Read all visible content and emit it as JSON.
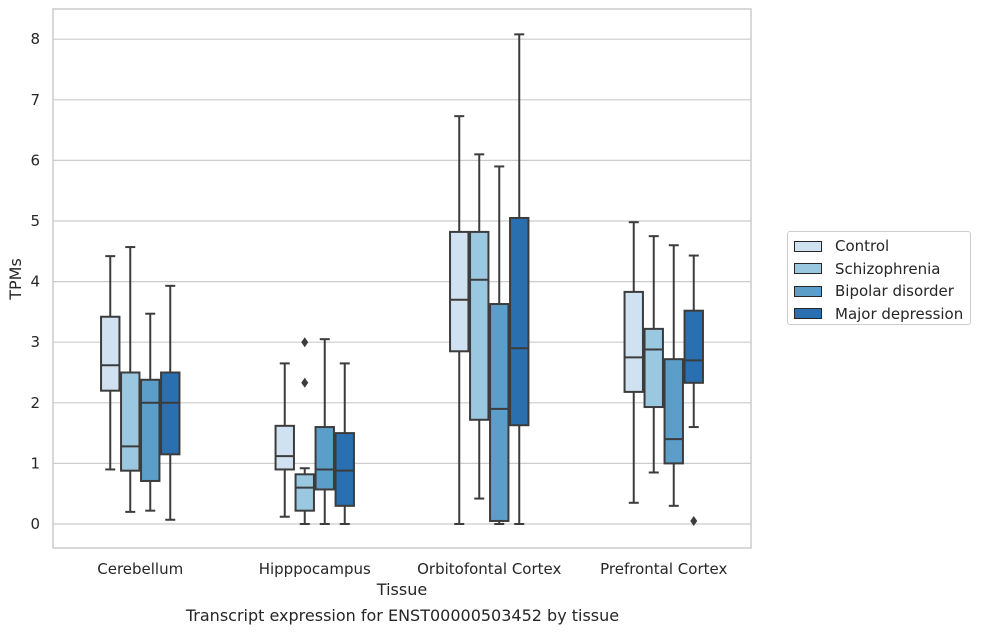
{
  "chart_data": {
    "type": "box",
    "caption": "Transcript expression for ENST00000503452 by tissue",
    "xlabel": "Tissue",
    "ylabel": "TPMs",
    "ylim": [
      -0.4,
      8.5
    ],
    "yticks": [
      0,
      1,
      2,
      3,
      4,
      5,
      6,
      7,
      8
    ],
    "grid": true,
    "legend_position": "right",
    "categories": [
      "Cerebellum",
      "Hipppocampus",
      "Orbitofontal Cortex",
      "Prefrontal Cortex"
    ],
    "series": [
      {
        "name": "Control",
        "color": "#d0e1f2",
        "boxes": [
          {
            "whisker_low": 0.9,
            "q1": 2.2,
            "median": 2.62,
            "q3": 3.42,
            "whisker_high": 4.42,
            "outliers": []
          },
          {
            "whisker_low": 0.12,
            "q1": 0.9,
            "median": 1.12,
            "q3": 1.62,
            "whisker_high": 2.65,
            "outliers": []
          },
          {
            "whisker_low": 0.0,
            "q1": 2.85,
            "median": 3.7,
            "q3": 4.82,
            "whisker_high": 6.73,
            "outliers": []
          },
          {
            "whisker_low": 0.35,
            "q1": 2.18,
            "median": 2.75,
            "q3": 3.83,
            "whisker_high": 4.98,
            "outliers": []
          }
        ]
      },
      {
        "name": "Schizophrenia",
        "color": "#9ac8e0",
        "boxes": [
          {
            "whisker_low": 0.2,
            "q1": 0.88,
            "median": 1.28,
            "q3": 2.5,
            "whisker_high": 4.57,
            "outliers": []
          },
          {
            "whisker_low": 0.0,
            "q1": 0.22,
            "median": 0.6,
            "q3": 0.82,
            "whisker_high": 0.92,
            "outliers": [
              2.33,
              3.0
            ]
          },
          {
            "whisker_low": 0.42,
            "q1": 1.72,
            "median": 4.03,
            "q3": 4.82,
            "whisker_high": 6.1,
            "outliers": []
          },
          {
            "whisker_low": 0.85,
            "q1": 1.93,
            "median": 2.88,
            "q3": 3.22,
            "whisker_high": 4.75,
            "outliers": []
          }
        ]
      },
      {
        "name": "Bipolar disorder",
        "color": "#5a9ec9",
        "boxes": [
          {
            "whisker_low": 0.22,
            "q1": 0.71,
            "median": 2.0,
            "q3": 2.38,
            "whisker_high": 3.47,
            "outliers": []
          },
          {
            "whisker_low": 0.0,
            "q1": 0.57,
            "median": 0.9,
            "q3": 1.6,
            "whisker_high": 3.05,
            "outliers": []
          },
          {
            "whisker_low": 0.0,
            "q1": 0.05,
            "median": 1.9,
            "q3": 3.63,
            "whisker_high": 5.9,
            "outliers": []
          },
          {
            "whisker_low": 0.3,
            "q1": 1.0,
            "median": 1.4,
            "q3": 2.72,
            "whisker_high": 4.6,
            "outliers": []
          }
        ]
      },
      {
        "name": "Major depression",
        "color": "#2a6fb0",
        "boxes": [
          {
            "whisker_low": 0.07,
            "q1": 1.15,
            "median": 2.0,
            "q3": 2.5,
            "whisker_high": 3.93,
            "outliers": []
          },
          {
            "whisker_low": 0.0,
            "q1": 0.3,
            "median": 0.88,
            "q3": 1.5,
            "whisker_high": 2.65,
            "outliers": []
          },
          {
            "whisker_low": 0.0,
            "q1": 1.63,
            "median": 2.9,
            "q3": 5.05,
            "whisker_high": 8.08,
            "outliers": []
          },
          {
            "whisker_low": 1.6,
            "q1": 2.33,
            "median": 2.7,
            "q3": 3.52,
            "whisker_high": 4.43,
            "outliers": [
              0.05
            ]
          }
        ]
      }
    ]
  }
}
